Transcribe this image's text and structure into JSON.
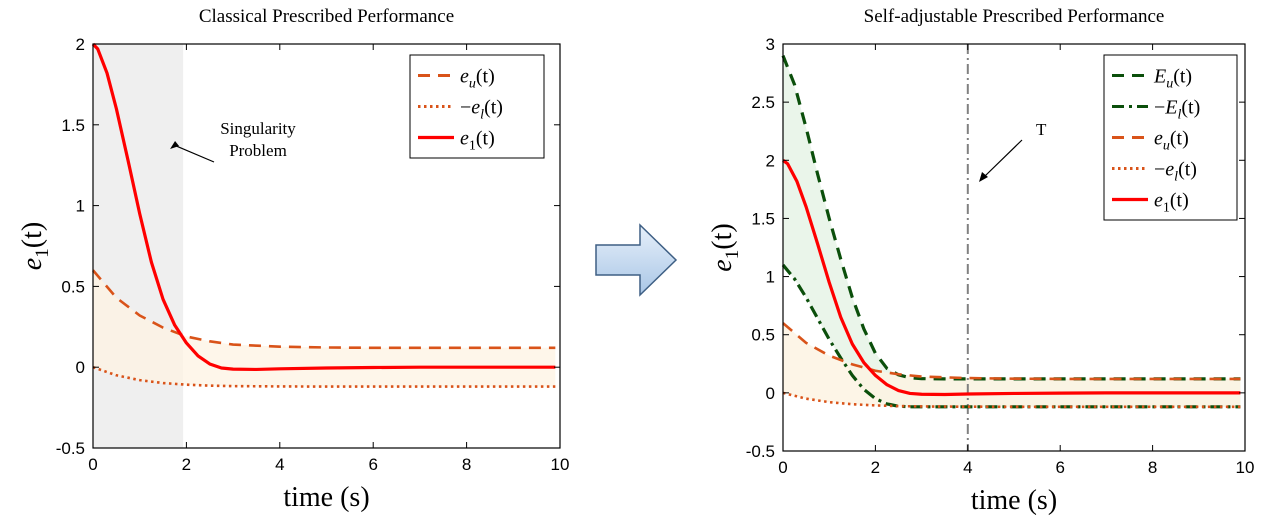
{
  "chart_data": [
    {
      "type": "line",
      "title": "Classical Prescribed Performance",
      "xlabel": "time (s)",
      "ylabel_main": "e",
      "ylabel_sub": "1",
      "ylabel_tail": "(t)",
      "xlim": [
        0,
        10
      ],
      "ylim": [
        -0.5,
        2
      ],
      "xticks": [
        "0",
        "2",
        "4",
        "6",
        "8",
        "10"
      ],
      "yticks": [
        "-0.5",
        "0",
        "0.5",
        "1",
        "1.5",
        "2"
      ],
      "grid": false,
      "legend_placement": "top-right",
      "shaded_region": {
        "x": [
          0,
          1.93
        ],
        "color": "#efefef"
      },
      "annotation": {
        "lines": [
          "Singularity",
          "Problem"
        ],
        "arrow_to": [
          1.65,
          1.35
        ]
      },
      "series": [
        {
          "legend": {
            "prefix": "",
            "sym": "e",
            "sub": "u",
            "tail": "(t)"
          },
          "style": "dashed",
          "color": "#D95319",
          "x": [
            0,
            0.5,
            1,
            1.5,
            2,
            2.5,
            3,
            4,
            5,
            6,
            7,
            8,
            9,
            9.9
          ],
          "y": [
            0.6,
            0.43,
            0.32,
            0.245,
            0.19,
            0.16,
            0.14,
            0.127,
            0.122,
            0.12,
            0.12,
            0.12,
            0.12,
            0.12
          ]
        },
        {
          "legend": {
            "prefix": "−",
            "sym": "e",
            "sub": "l",
            "tail": "(t)"
          },
          "style": "dotted",
          "color": "#D95319",
          "x": [
            0,
            0.5,
            1,
            1.5,
            2,
            2.5,
            3,
            4,
            5,
            6,
            7,
            8,
            9,
            9.9
          ],
          "y": [
            0,
            -0.05,
            -0.08,
            -0.098,
            -0.108,
            -0.114,
            -0.117,
            -0.119,
            -0.12,
            -0.12,
            -0.12,
            -0.12,
            -0.12,
            -0.12
          ]
        },
        {
          "legend": {
            "prefix": "",
            "sym": "e",
            "sub": "1",
            "tail": "(t)"
          },
          "style": "solid",
          "color": "#FF0000",
          "x": [
            0,
            0.1,
            0.3,
            0.5,
            0.75,
            1,
            1.25,
            1.5,
            1.75,
            2,
            2.25,
            2.5,
            2.75,
            3,
            3.5,
            4,
            5,
            6,
            7,
            8,
            9,
            9.9
          ],
          "y": [
            2,
            1.97,
            1.82,
            1.6,
            1.28,
            0.95,
            0.65,
            0.42,
            0.26,
            0.15,
            0.07,
            0.02,
            -0.005,
            -0.012,
            -0.014,
            -0.01,
            -0.005,
            -0.002,
            0,
            0,
            0,
            0
          ]
        }
      ]
    },
    {
      "type": "line",
      "title": "Self-adjustable Prescribed Performance",
      "xlabel": "time (s)",
      "ylabel_main": "e",
      "ylabel_sub": "1",
      "ylabel_tail": "(t)",
      "xlim": [
        0,
        10
      ],
      "ylim": [
        -0.5,
        3
      ],
      "xticks": [
        "0",
        "2",
        "4",
        "6",
        "8",
        "10"
      ],
      "yticks": [
        "-0.5",
        "0",
        "0.5",
        "1",
        "1.5",
        "2",
        "2.5",
        "3"
      ],
      "grid": false,
      "legend_placement": "top-right",
      "vline": {
        "x": 4,
        "label": "T",
        "color": "#808080",
        "style": "dash-dot"
      },
      "series": [
        {
          "legend": {
            "prefix": "",
            "sym": "E",
            "sub": "u",
            "tail": "(t)"
          },
          "style": "dashed",
          "color": "#0B4F0B",
          "x": [
            0,
            0.25,
            0.5,
            0.75,
            1,
            1.25,
            1.5,
            1.75,
            2,
            2.25,
            2.5,
            2.75,
            3,
            3.5,
            4,
            5,
            6,
            7,
            8,
            9,
            9.9
          ],
          "y": [
            2.9,
            2.65,
            2.28,
            1.88,
            1.5,
            1.15,
            0.82,
            0.55,
            0.34,
            0.21,
            0.155,
            0.13,
            0.122,
            0.12,
            0.12,
            0.12,
            0.12,
            0.12,
            0.12,
            0.12,
            0.12
          ]
        },
        {
          "legend": {
            "prefix": "−",
            "sym": "E",
            "sub": "l",
            "tail": "(t)"
          },
          "style": "dash-dot",
          "color": "#0B4F0B",
          "x": [
            0,
            0.25,
            0.5,
            0.75,
            1,
            1.25,
            1.5,
            1.75,
            2,
            2.25,
            2.5,
            2.75,
            3,
            3.5,
            4,
            5,
            6,
            7,
            8,
            9,
            9.9
          ],
          "y": [
            1.1,
            0.98,
            0.82,
            0.64,
            0.46,
            0.3,
            0.15,
            0.03,
            -0.05,
            -0.095,
            -0.115,
            -0.12,
            -0.12,
            -0.12,
            -0.12,
            -0.12,
            -0.12,
            -0.12,
            -0.12,
            -0.12,
            -0.12
          ]
        },
        {
          "legend": {
            "prefix": "",
            "sym": "e",
            "sub": "u",
            "tail": "(t)"
          },
          "style": "dashed",
          "color": "#D95319",
          "x": [
            0,
            0.5,
            1,
            1.5,
            2,
            2.5,
            3,
            4,
            5,
            6,
            7,
            8,
            9,
            9.9
          ],
          "y": [
            0.6,
            0.43,
            0.32,
            0.245,
            0.19,
            0.16,
            0.14,
            0.127,
            0.122,
            0.12,
            0.12,
            0.12,
            0.12,
            0.12
          ]
        },
        {
          "legend": {
            "prefix": "−",
            "sym": "e",
            "sub": "l",
            "tail": "(t)"
          },
          "style": "dotted",
          "color": "#D95319",
          "x": [
            0,
            0.5,
            1,
            1.5,
            2,
            2.5,
            3,
            4,
            5,
            6,
            7,
            8,
            9,
            9.9
          ],
          "y": [
            0,
            -0.05,
            -0.08,
            -0.098,
            -0.108,
            -0.114,
            -0.117,
            -0.119,
            -0.12,
            -0.12,
            -0.12,
            -0.12,
            -0.12,
            -0.12
          ]
        },
        {
          "legend": {
            "prefix": "",
            "sym": "e",
            "sub": "1",
            "tail": "(t)"
          },
          "style": "solid",
          "color": "#FF0000",
          "x": [
            0,
            0.1,
            0.3,
            0.5,
            0.75,
            1,
            1.25,
            1.5,
            1.75,
            2,
            2.25,
            2.5,
            2.75,
            3,
            3.5,
            4,
            5,
            6,
            7,
            8,
            9,
            9.9
          ],
          "y": [
            2,
            1.97,
            1.82,
            1.6,
            1.28,
            0.95,
            0.65,
            0.42,
            0.26,
            0.15,
            0.07,
            0.02,
            -0.005,
            -0.012,
            -0.014,
            -0.01,
            -0.005,
            -0.002,
            0,
            0,
            0,
            0
          ]
        }
      ]
    }
  ],
  "colors": {
    "classical_band": "#FDF3E3",
    "adjustable_band": "#E6F3E6",
    "transition_arrow_fill": "#C9DCF0",
    "transition_arrow_stroke": "#3E5F84"
  },
  "transition_arrow_icon": "right-arrow-icon"
}
